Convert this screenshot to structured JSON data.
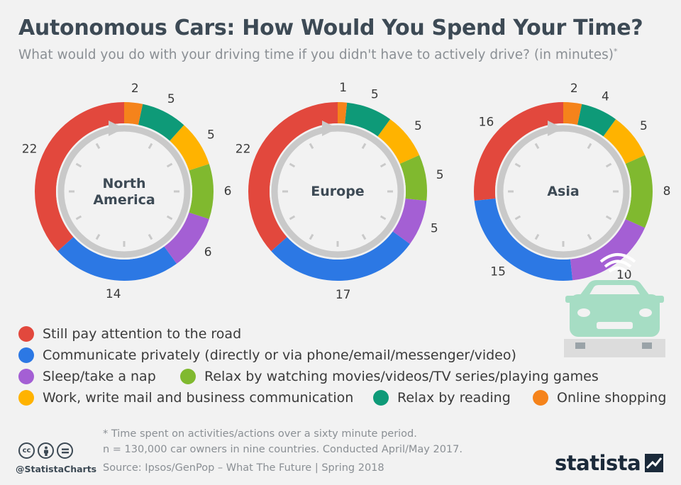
{
  "title": "Autonomous Cars: How Would You Spend Your Time?",
  "subtitle": "What would you do with your driving time if you didn't have to actively drive? (in minutes)",
  "subtitle_mark": "*",
  "colors": {
    "road": "#e2483d",
    "communicate": "#2c78e4",
    "sleep": "#a45fd4",
    "relax_movies": "#80b92f",
    "work": "#ffb300",
    "reading": "#0e9a78",
    "shopping": "#f5831b"
  },
  "chart_data": {
    "type": "pie",
    "variant": "donut",
    "unit": "minutes",
    "categories": [
      "Still pay attention to the road",
      "Communicate privately (directly or via phone/email/messenger/video)",
      "Sleep/take a nap",
      "Relax by watching movies/videos/TV series/playing games",
      "Work, write mail and business communication",
      "Relax by reading",
      "Online shopping"
    ],
    "series": [
      {
        "name": "North America",
        "values": [
          22,
          14,
          6,
          6,
          5,
          5,
          2
        ]
      },
      {
        "name": "Europe",
        "values": [
          22,
          17,
          5,
          5,
          5,
          5,
          1
        ]
      },
      {
        "name": "Asia",
        "values": [
          16,
          15,
          10,
          8,
          5,
          4,
          2
        ]
      }
    ]
  },
  "legend": [
    {
      "label": "Still pay attention to the road",
      "color": "#e2483d"
    },
    {
      "label": "Communicate privately (directly or via phone/email/messenger/video)",
      "color": "#2c78e4"
    },
    {
      "label": "Sleep/take a nap",
      "color": "#a45fd4"
    },
    {
      "label": "Relax by watching movies/videos/TV series/playing games",
      "color": "#80b92f"
    },
    {
      "label": "Work, write mail and business communication",
      "color": "#ffb300"
    },
    {
      "label": "Relax by reading",
      "color": "#0e9a78"
    },
    {
      "label": "Online shopping",
      "color": "#f5831b"
    }
  ],
  "footnotes": {
    "note": "* Time spent on activities/actions over a sixty minute period.",
    "sample": "n = 130,000 car owners in nine countries. Conducted April/May 2017.",
    "source": "Source: Ipsos/GenPop – What The Future | Spring 2018"
  },
  "branding": {
    "handle": "@StatistaCharts",
    "brand": "statista",
    "cc_icons": [
      "cc-icon",
      "by-icon",
      "nd-icon"
    ]
  }
}
